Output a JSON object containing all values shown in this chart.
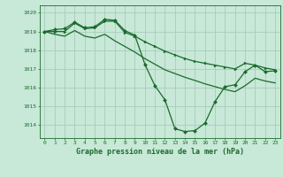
{
  "title": "Graphe pression niveau de la mer (hPa)",
  "bg_color": "#c8e8d8",
  "grid_color": "#a8ccbc",
  "line_color": "#1a6b2a",
  "xlim": [
    -0.5,
    23.5
  ],
  "ylim": [
    1013.3,
    1020.4
  ],
  "yticks": [
    1014,
    1015,
    1016,
    1017,
    1018,
    1019,
    1020
  ],
  "xticks": [
    0,
    1,
    2,
    3,
    4,
    5,
    6,
    7,
    8,
    9,
    10,
    11,
    12,
    13,
    14,
    15,
    16,
    17,
    18,
    19,
    20,
    21,
    22,
    23
  ],
  "series": [
    {
      "x": [
        0,
        1,
        2,
        3,
        4,
        5,
        6,
        7,
        8,
        9,
        10,
        11,
        12,
        13,
        14,
        15,
        16,
        17,
        18,
        19,
        20,
        21,
        22,
        23
      ],
      "y": [
        1019.0,
        1019.1,
        1019.15,
        1019.5,
        1019.2,
        1019.25,
        1019.65,
        1019.6,
        1019.05,
        1018.8,
        1017.25,
        1016.1,
        1015.35,
        1013.8,
        1013.65,
        1013.7,
        1014.1,
        1015.25,
        1016.05,
        1016.15,
        1016.85,
        1017.2,
        1016.85,
        1016.9
      ],
      "marker": "D",
      "markersize": 2.0,
      "lw": 0.9
    },
    {
      "x": [
        0,
        1,
        2,
        3,
        4,
        5,
        6,
        7,
        8,
        9,
        10,
        11,
        12,
        13,
        14,
        15,
        16,
        17,
        18,
        19,
        20,
        21,
        22,
        23
      ],
      "y": [
        1019.0,
        1019.0,
        1019.0,
        1019.45,
        1019.15,
        1019.2,
        1019.55,
        1019.55,
        1018.95,
        1018.75,
        1018.45,
        1018.2,
        1017.95,
        1017.75,
        1017.55,
        1017.4,
        1017.3,
        1017.2,
        1017.1,
        1017.0,
        1017.3,
        1017.2,
        1017.05,
        1016.95
      ],
      "marker": ">",
      "markersize": 2.0,
      "lw": 0.9
    },
    {
      "x": [
        0,
        1,
        2,
        3,
        4,
        5,
        6,
        7,
        8,
        9,
        10,
        11,
        12,
        13,
        14,
        15,
        16,
        17,
        18,
        19,
        20,
        21,
        22,
        23
      ],
      "y": [
        1019.0,
        1018.85,
        1018.75,
        1019.05,
        1018.75,
        1018.65,
        1018.85,
        1018.5,
        1018.2,
        1017.9,
        1017.55,
        1017.25,
        1016.95,
        1016.75,
        1016.55,
        1016.38,
        1016.2,
        1016.05,
        1015.9,
        1015.78,
        1016.1,
        1016.5,
        1016.35,
        1016.25
      ],
      "marker": null,
      "markersize": 0,
      "lw": 0.9
    }
  ]
}
